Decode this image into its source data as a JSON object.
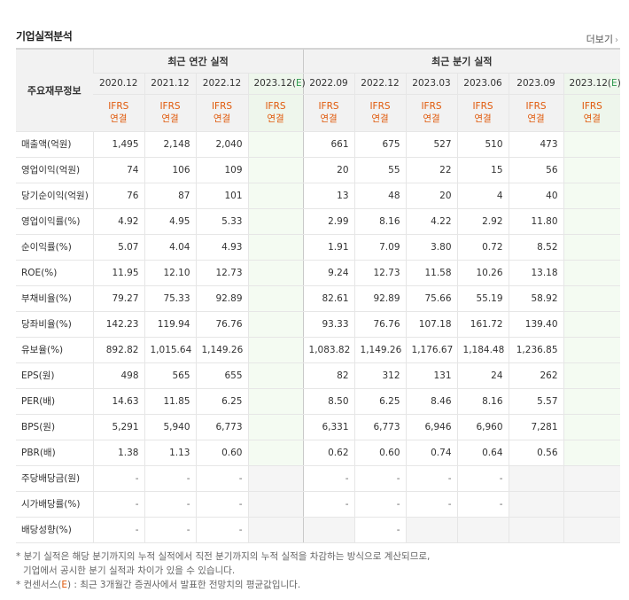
{
  "header": {
    "title": "기업실적분석",
    "more_label": "더보기"
  },
  "table": {
    "row_label_header": "주요재무정보",
    "group_annual": "최근 연간 실적",
    "group_quarter": "최근 분기 실적",
    "annual_periods": [
      "2020.12",
      "2021.12",
      "2022.12",
      "2023.12(E)"
    ],
    "quarter_periods": [
      "2022.09",
      "2022.12",
      "2023.03",
      "2023.06",
      "2023.09",
      "2023.12(E)"
    ],
    "basis_line1": "IFRS",
    "basis_line2": "연결",
    "rows": [
      {
        "label": "매출액(억원)",
        "annual": [
          "1,495",
          "2,148",
          "2,040",
          ""
        ],
        "quarter": [
          "661",
          "675",
          "527",
          "510",
          "473",
          ""
        ]
      },
      {
        "label": "영업이익(억원)",
        "annual": [
          "74",
          "106",
          "109",
          ""
        ],
        "quarter": [
          "20",
          "55",
          "22",
          "15",
          "56",
          ""
        ]
      },
      {
        "label": "당기순이익(억원)",
        "annual": [
          "76",
          "87",
          "101",
          ""
        ],
        "quarter": [
          "13",
          "48",
          "20",
          "4",
          "40",
          ""
        ]
      },
      {
        "label": "영업이익률(%)",
        "annual": [
          "4.92",
          "4.95",
          "5.33",
          ""
        ],
        "quarter": [
          "2.99",
          "8.16",
          "4.22",
          "2.92",
          "11.80",
          ""
        ]
      },
      {
        "label": "순이익률(%)",
        "annual": [
          "5.07",
          "4.04",
          "4.93",
          ""
        ],
        "quarter": [
          "1.91",
          "7.09",
          "3.80",
          "0.72",
          "8.52",
          ""
        ]
      },
      {
        "label": "ROE(%)",
        "annual": [
          "11.95",
          "12.10",
          "12.73",
          ""
        ],
        "quarter": [
          "9.24",
          "12.73",
          "11.58",
          "10.26",
          "13.18",
          ""
        ]
      },
      {
        "label": "부채비율(%)",
        "annual": [
          "79.27",
          "75.33",
          "92.89",
          ""
        ],
        "quarter": [
          "82.61",
          "92.89",
          "75.66",
          "55.19",
          "58.92",
          ""
        ]
      },
      {
        "label": "당좌비율(%)",
        "annual": [
          "142.23",
          "119.94",
          "76.76",
          ""
        ],
        "quarter": [
          "93.33",
          "76.76",
          "107.18",
          "161.72",
          "139.40",
          ""
        ]
      },
      {
        "label": "유보율(%)",
        "annual": [
          "892.82",
          "1,015.64",
          "1,149.26",
          ""
        ],
        "quarter": [
          "1,083.82",
          "1,149.26",
          "1,176.67",
          "1,184.48",
          "1,236.85",
          ""
        ]
      },
      {
        "label": "EPS(원)",
        "annual": [
          "498",
          "565",
          "655",
          ""
        ],
        "quarter": [
          "82",
          "312",
          "131",
          "24",
          "262",
          ""
        ]
      },
      {
        "label": "PER(배)",
        "annual": [
          "14.63",
          "11.85",
          "6.25",
          ""
        ],
        "quarter": [
          "8.50",
          "6.25",
          "8.46",
          "8.16",
          "5.57",
          ""
        ]
      },
      {
        "label": "BPS(원)",
        "annual": [
          "5,291",
          "5,940",
          "6,773",
          ""
        ],
        "quarter": [
          "6,331",
          "6,773",
          "6,946",
          "6,960",
          "7,281",
          ""
        ]
      },
      {
        "label": "PBR(배)",
        "annual": [
          "1.38",
          "1.13",
          "0.60",
          ""
        ],
        "quarter": [
          "0.62",
          "0.60",
          "0.74",
          "0.64",
          "0.56",
          ""
        ]
      },
      {
        "label": "주당배당금(원)",
        "annual": [
          "-",
          "-",
          "-",
          ""
        ],
        "quarter": [
          "-",
          "-",
          "-",
          "-",
          "",
          ""
        ]
      },
      {
        "label": "시가배당률(%)",
        "annual": [
          "-",
          "-",
          "-",
          ""
        ],
        "quarter": [
          "-",
          "-",
          "-",
          "-",
          "",
          ""
        ]
      },
      {
        "label": "배당성향(%)",
        "annual": [
          "-",
          "-",
          "-",
          ""
        ],
        "quarter": [
          "",
          "-",
          "",
          "",
          "",
          ""
        ]
      }
    ]
  },
  "notes": {
    "line1": "* 분기 실적은 해당 분기까지의 누적 실적에서 직전 분기까지의 누적 실적을 차감하는 방식으로 계산되므로,",
    "line2": "기업에서 공시한 분기 실적과 차이가 있을 수 있습니다.",
    "line3_prefix": "* 컨센서스(",
    "line3_e": "E",
    "line3_suffix": ") : 최근 3개월간 증권사에서 발표한 전망치의 평균값입니다."
  },
  "colors": {
    "accent_orange": "#e0590b",
    "estimate_green": "#2f9a4e",
    "header_bg": "#f2f2f2",
    "estimate_bg": "#f4fbf2"
  }
}
